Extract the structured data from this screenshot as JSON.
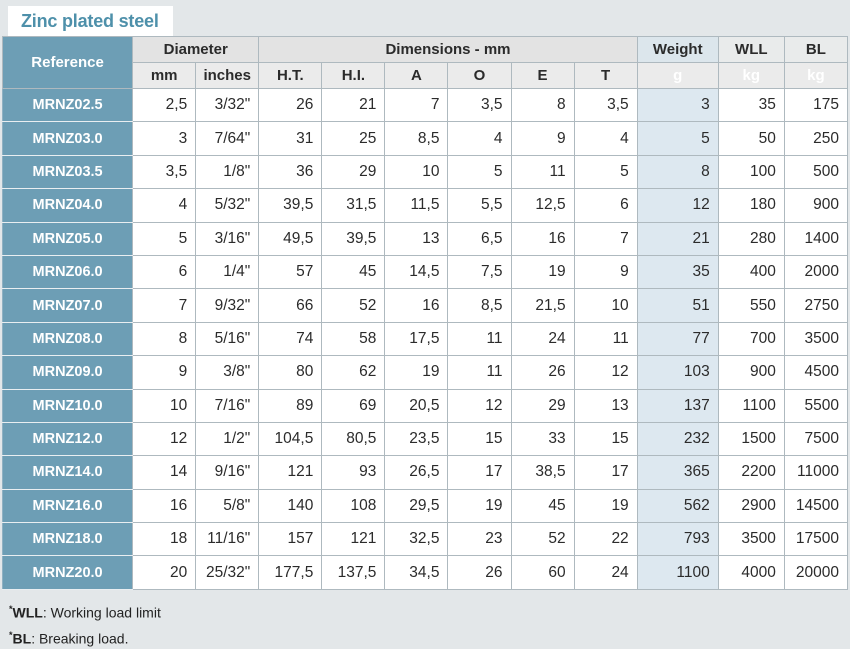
{
  "tab": {
    "label": "Zinc plated steel"
  },
  "colors": {
    "steel_blue": "#6D9EB5",
    "weight_column_tint": "#DDE8F0",
    "tab_text": "#4E90AA",
    "page_background": "#E3E7E9"
  },
  "table": {
    "group_headers": {
      "reference": "Reference",
      "diameter": "Diameter",
      "dimensions": "Dimensions - mm",
      "weight": "Weight",
      "wll": "WLL",
      "bl": "BL"
    },
    "sub_headers": [
      "mm",
      "inches",
      "H.T.",
      "H.I.",
      "A",
      "O",
      "E",
      "T",
      "g",
      "kg",
      "kg"
    ],
    "rows": [
      [
        "MRNZ02.5",
        "2,5",
        "3/32\"",
        "26",
        "21",
        "7",
        "3,5",
        "8",
        "3,5",
        "3",
        "35",
        "175"
      ],
      [
        "MRNZ03.0",
        "3",
        "7/64\"",
        "31",
        "25",
        "8,5",
        "4",
        "9",
        "4",
        "5",
        "50",
        "250"
      ],
      [
        "MRNZ03.5",
        "3,5",
        "1/8\"",
        "36",
        "29",
        "10",
        "5",
        "11",
        "5",
        "8",
        "100",
        "500"
      ],
      [
        "MRNZ04.0",
        "4",
        "5/32\"",
        "39,5",
        "31,5",
        "11,5",
        "5,5",
        "12,5",
        "6",
        "12",
        "180",
        "900"
      ],
      [
        "MRNZ05.0",
        "5",
        "3/16\"",
        "49,5",
        "39,5",
        "13",
        "6,5",
        "16",
        "7",
        "21",
        "280",
        "1400"
      ],
      [
        "MRNZ06.0",
        "6",
        "1/4\"",
        "57",
        "45",
        "14,5",
        "7,5",
        "19",
        "9",
        "35",
        "400",
        "2000"
      ],
      [
        "MRNZ07.0",
        "7",
        "9/32\"",
        "66",
        "52",
        "16",
        "8,5",
        "21,5",
        "10",
        "51",
        "550",
        "2750"
      ],
      [
        "MRNZ08.0",
        "8",
        "5/16\"",
        "74",
        "58",
        "17,5",
        "11",
        "24",
        "11",
        "77",
        "700",
        "3500"
      ],
      [
        "MRNZ09.0",
        "9",
        "3/8\"",
        "80",
        "62",
        "19",
        "11",
        "26",
        "12",
        "103",
        "900",
        "4500"
      ],
      [
        "MRNZ10.0",
        "10",
        "7/16\"",
        "89",
        "69",
        "20,5",
        "12",
        "29",
        "13",
        "137",
        "1100",
        "5500"
      ],
      [
        "MRNZ12.0",
        "12",
        "1/2\"",
        "104,5",
        "80,5",
        "23,5",
        "15",
        "33",
        "15",
        "232",
        "1500",
        "7500"
      ],
      [
        "MRNZ14.0",
        "14",
        "9/16\"",
        "121",
        "93",
        "26,5",
        "17",
        "38,5",
        "17",
        "365",
        "2200",
        "11000"
      ],
      [
        "MRNZ16.0",
        "16",
        "5/8\"",
        "140",
        "108",
        "29,5",
        "19",
        "45",
        "19",
        "562",
        "2900",
        "14500"
      ],
      [
        "MRNZ18.0",
        "18",
        "11/16\"",
        "157",
        "121",
        "32,5",
        "23",
        "52",
        "22",
        "793",
        "3500",
        "17500"
      ],
      [
        "MRNZ20.0",
        "20",
        "25/32\"",
        "177,5",
        "137,5",
        "34,5",
        "26",
        "60",
        "24",
        "1100",
        "4000",
        "20000"
      ]
    ]
  },
  "footnotes": [
    {
      "prefix": "*",
      "term": "WLL",
      "text": ": Working load limit"
    },
    {
      "prefix": "*",
      "term": "BL",
      "text": ": Breaking load."
    }
  ]
}
